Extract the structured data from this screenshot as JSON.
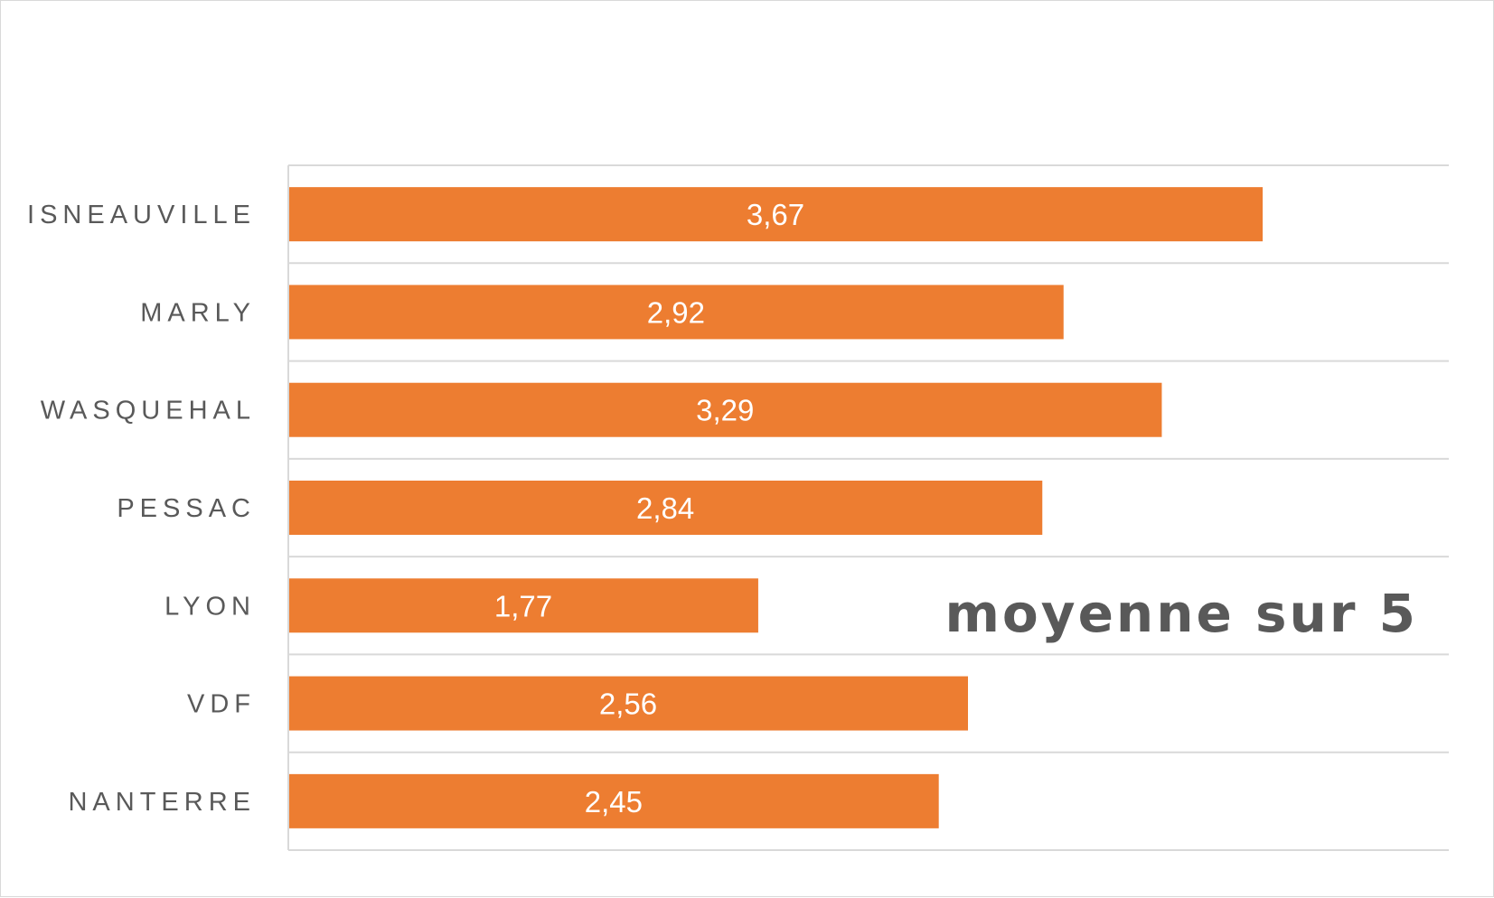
{
  "chart_data": {
    "type": "bar",
    "orientation": "horizontal",
    "title": "moyenne sur 5",
    "categories": [
      "ISNEAUVILLE",
      "MARLY",
      "WASQUEHAL",
      "PESSAC",
      "LYON",
      "VDF",
      "NANTERRE"
    ],
    "values": [
      3.67,
      2.92,
      3.29,
      2.84,
      1.77,
      2.56,
      2.45
    ],
    "data_labels": [
      "3,67",
      "2,92",
      "3,29",
      "2,84",
      "1,77",
      "2,56",
      "2,45"
    ],
    "xlim": [
      0,
      4
    ],
    "grid": true,
    "legend": "none",
    "bar_color": "#ED7D31",
    "xlabel": "",
    "ylabel": ""
  }
}
